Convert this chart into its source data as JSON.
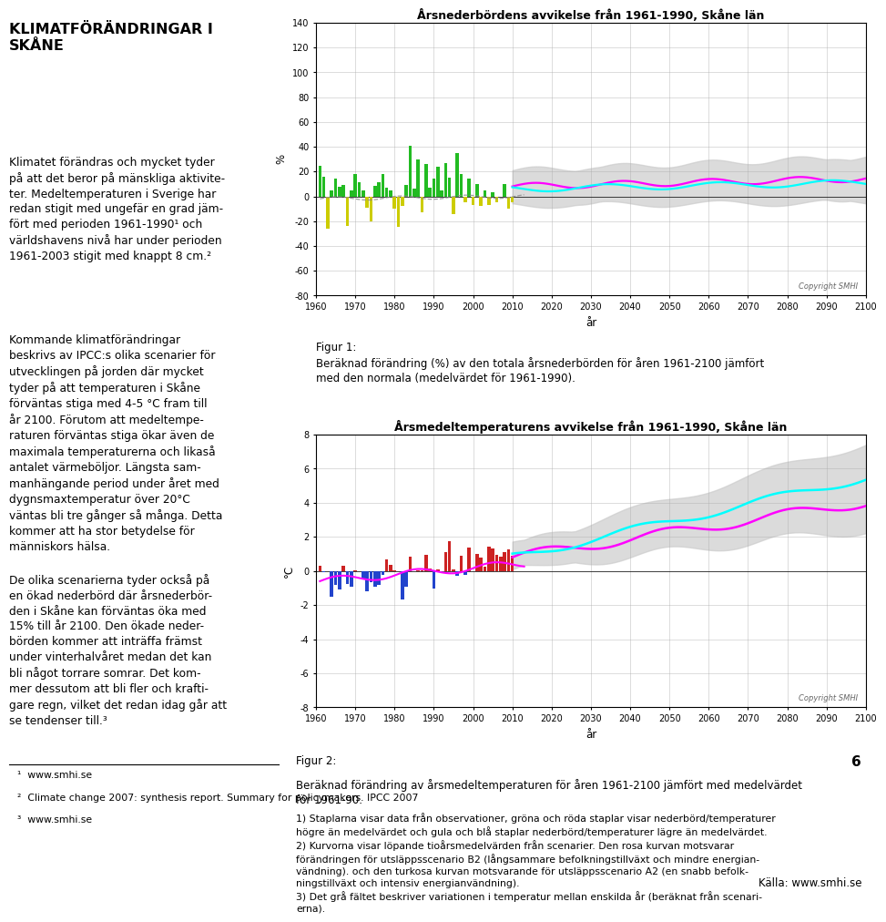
{
  "title_main": "KLIMATFÖRÄNDRINGAR I\nSKÅNE",
  "body_para1": "Klimatet förändras och mycket tyder\npå att det beror på mänskliga aktivite-\nter. Medeltemperaturen i Sverige har\nredan stigit med ungefär en grad jäm-\nfört med perioden 1961-1990¹ och\nvärldshavens nivå har under perioden\n1961-2003 stigit med knappt 8 cm.²",
  "body_para2": "Kommande klimatförändringar\nbeskrivs av IPCC:s olika scenarier för\nutvecklingen på jorden där mycket\ntyder på att temperaturen i Skåne\nförväntas stiga med 4-5 °C fram till\når 2100. Förutom att medeltempe-\nraturen förväntas stiga ökar även de\nmaximala temperaturerna och likaså\nantalet värmeböljor. Längsta sam-\nmanhängande period under året med\ndygnsmaxtemperatur över 20°C\nväntas bli tre gånger så många. Detta\nkommer att ha stor betydelse för\nmänniskors hälsa.",
  "body_para3": "De olika scenarierna tyder också på\nen ökad nederbörd där årsnederbör-\nden i Skåne kan förväntas öka med\n15% till år 2100. Den ökade neder-\nbörden kommer att inträffa främst\nunder vinterhalvåret medan det kan\nbli något torrare somrar. Det kom-\nmer dessutom att bli fler och krafti-\ngare regn, vilket det redan idag går att\nse tendenser till.³",
  "chart1_title": "Årsnederbördens avvikelse från 1961-1990, Skåne län",
  "chart1_ylabel": "%",
  "chart1_xlabel": "år",
  "chart1_ylim": [
    -80,
    140
  ],
  "chart1_yticks": [
    -80,
    -60,
    -40,
    -20,
    0,
    20,
    40,
    60,
    80,
    100,
    120,
    140
  ],
  "chart1_xlim": [
    1960,
    2100
  ],
  "chart1_xticks": [
    1960,
    1970,
    1980,
    1990,
    2000,
    2010,
    2020,
    2030,
    2040,
    2050,
    2060,
    2070,
    2080,
    2090,
    2100
  ],
  "chart2_title": "Årsmedeltemperaturens avvikelse från 1961-1990, Skåne län",
  "chart2_ylabel": "°C",
  "chart2_xlabel": "år",
  "chart2_ylim": [
    -8,
    8
  ],
  "chart2_yticks": [
    -8,
    -6,
    -4,
    -2,
    0,
    2,
    4,
    6,
    8
  ],
  "chart2_xlim": [
    1960,
    2100
  ],
  "chart2_xticks": [
    1960,
    1970,
    1980,
    1990,
    2000,
    2010,
    2020,
    2030,
    2040,
    2050,
    2060,
    2070,
    2080,
    2090,
    2100
  ],
  "fig1_label": "Figur 1:",
  "fig1_caption": "Beräknad förändring (%) av den totala årsnederbörden för åren 1961-2100 jämfört\nmed den normala (medelvärdet för 1961-1990).",
  "fig2_label": "Figur 2:",
  "fig2_caption": "Beräknad förändring av årsmedeltemperaturen för åren 1961-2100 jämfört med medelvärdet\nför 1961-90.",
  "footnote_line": "_____________________________",
  "footnote1": "¹  www.smhi.se",
  "footnote2": "²  Climate change 2007: synthesis report. Summary for policymakers. IPCC 2007",
  "footnote3": "³  www.smhi.se",
  "source": "Källa: www.smhi.se",
  "page_number": "6",
  "copyright": "Copyright SMHI",
  "note_text": "1) Staplarna visar data från observationer, gröna och röda staplar visar nederbörd/temperaturer\nhögre än medelvärdet och gula och blå staplar nederbörd/temperaturer lägre än medelvärdet.\n2) Kurvorna visar löpande tioårsmedelvärden från scenarier. Den rosa kurvan motsvarar\nförändringen för utsläppsscenario B2 (långsammare befolkningstillväxt och mindre energian-\nvändning). och den turkosa kurvan motsvarande för utsläppsscenario A2 (en snabb befolk-\nningstillväxt och intensiv energianvändning).\n3) Det grå fältet beskriver variationen i temperatur mellan enskilda år (beräknat från scenari-\nerna)."
}
